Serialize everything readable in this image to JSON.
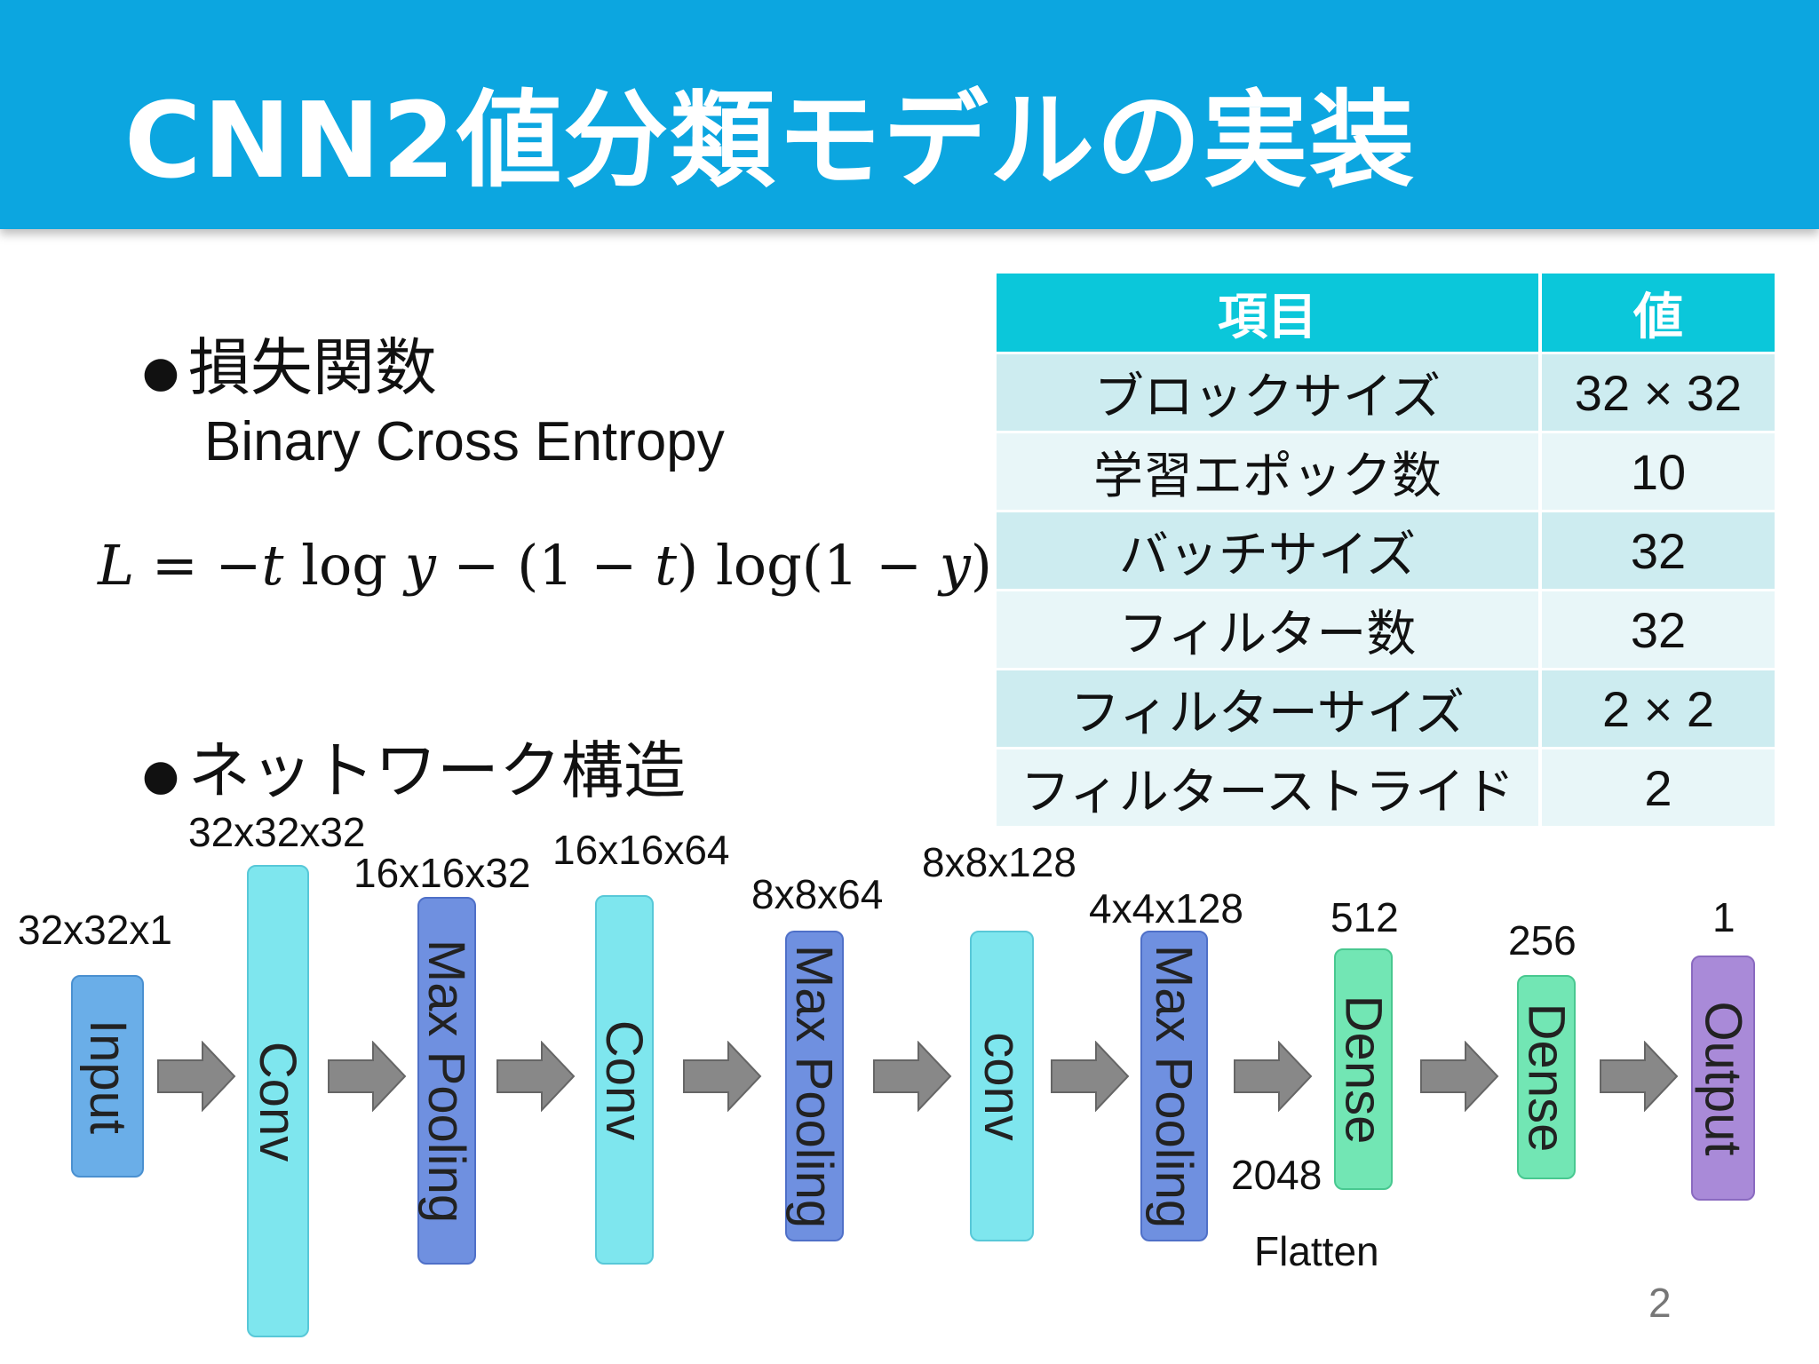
{
  "title": "CNN2値分類モデルの実装",
  "loss": {
    "bullet": "損失関数",
    "name": "Binary Cross Entropy",
    "formula": "L = −t log y − (1 − t) log(1 − y)"
  },
  "network": {
    "bullet": "ネットワーク構造",
    "blocks": [
      {
        "label": "Input",
        "dim": "32x32x1"
      },
      {
        "label": "Conv",
        "dim": "32x32x32"
      },
      {
        "label": "Max Pooling",
        "dim": "16x16x32"
      },
      {
        "label": "Conv",
        "dim": "16x16x64"
      },
      {
        "label": "Max Pooling",
        "dim": "8x8x64"
      },
      {
        "label": "conv",
        "dim": "8x8x128"
      },
      {
        "label": "Max Pooling",
        "dim": "4x4x128"
      },
      {
        "label": "Dense",
        "dim": "512"
      },
      {
        "label": "Dense",
        "dim": "256"
      },
      {
        "label": "Output",
        "dim": "1"
      }
    ],
    "flatten_size": "2048",
    "flatten_label": "Flatten"
  },
  "table": {
    "headers": [
      "項目",
      "値"
    ],
    "rows": [
      [
        "ブロックサイズ",
        "32 × 32"
      ],
      [
        "学習エポック数",
        "10"
      ],
      [
        "バッチサイズ",
        "32"
      ],
      [
        "フィルター数",
        "32"
      ],
      [
        "フィルターサイズ",
        "2 × 2"
      ],
      [
        "フィルターストライド",
        "2"
      ]
    ]
  },
  "page_number": "2",
  "colors": {
    "header": "#0ca6e0",
    "table_header": "#0bc7da",
    "input": "#6aaee8",
    "conv": "#7ee6ee",
    "pool": "#6f90e0",
    "dense": "#72e6b4",
    "output": "#a98ad8",
    "arrow": "#888888"
  }
}
